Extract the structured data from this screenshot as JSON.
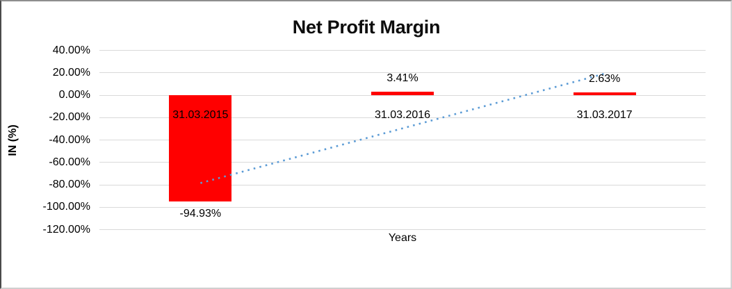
{
  "chart_data": {
    "type": "bar",
    "title": "Net Profit Margin",
    "xlabel": "Years",
    "ylabel": "IN (%)",
    "categories": [
      "31.03.2015",
      "31.03.2016",
      "31.03.2017"
    ],
    "values": [
      -94.93,
      3.41,
      2.63
    ],
    "value_labels": [
      "-94.93%",
      "3.41%",
      "2.63%"
    ],
    "yticks": [
      40,
      20,
      0,
      -20,
      -40,
      -60,
      -80,
      -100,
      -120
    ],
    "ytick_labels": [
      "40.00%",
      "20.00%",
      "0.00%",
      "-20.00%",
      "-40.00%",
      "-60.00%",
      "-80.00%",
      "-100.00%",
      "-120.00%"
    ],
    "ylim": [
      -120,
      40
    ],
    "grid": true,
    "legend_position": "none",
    "bar_color": "#FF0000",
    "gridline_color": "#D9D9D9",
    "trendline": {
      "type": "linear",
      "style": "dotted",
      "color": "#5B9BD5",
      "endpoints": [
        -78.4,
        19.2
      ]
    }
  }
}
